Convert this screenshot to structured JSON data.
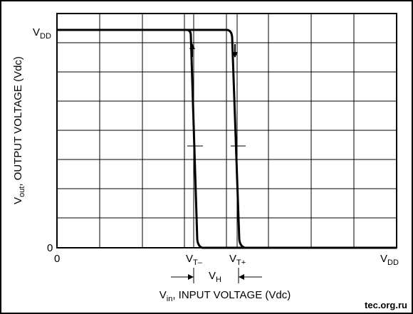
{
  "y_axis": {
    "top_label": {
      "main": "V",
      "sub": "DD"
    },
    "zero_label": "0",
    "title": {
      "main": "V",
      "sub": "out",
      "rest": ", OUTPUT VOLTAGE (Vdc)"
    }
  },
  "x_axis": {
    "zero_label": "0",
    "thresholds": [
      {
        "main": "V",
        "sub": "T–"
      },
      {
        "main": "V",
        "sub": "T+"
      }
    ],
    "end_label": {
      "main": "V",
      "sub": "DD"
    },
    "title": {
      "main": "V",
      "sub": "in",
      "rest": ", INPUT VOLTAGE (Vdc)"
    }
  },
  "hysteresis_label": {
    "main": "V",
    "sub": "H"
  },
  "watermark": "tec.org.ru"
}
